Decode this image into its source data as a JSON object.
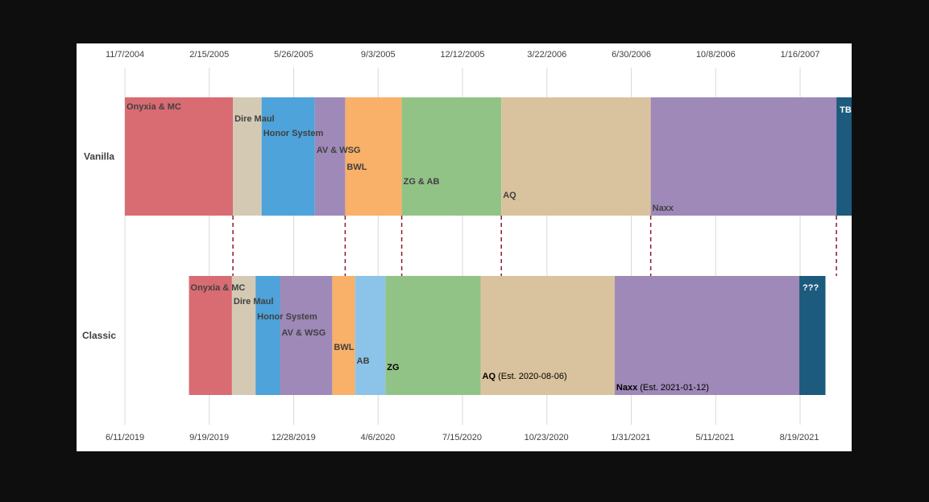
{
  "chart_data": {
    "type": "bar",
    "orientation": "horizontal-timeline",
    "top_axis": {
      "ticks": [
        "11/7/2004",
        "2/15/2005",
        "5/26/2005",
        "9/3/2005",
        "12/12/2005",
        "3/22/2006",
        "6/30/2006",
        "10/8/2006",
        "1/16/2007"
      ],
      "range": [
        "11/7/2004",
        "2/26/2007"
      ]
    },
    "bottom_axis": {
      "ticks": [
        "6/11/2019",
        "9/19/2019",
        "12/28/2019",
        "4/6/2020",
        "7/15/2020",
        "10/23/2020",
        "1/31/2021",
        "5/11/2021",
        "8/19/2021"
      ],
      "range": [
        "6/11/2019",
        "9/30/2021"
      ]
    },
    "rows": [
      {
        "name": "Vanilla",
        "axis": "top",
        "segments": [
          {
            "label": "Onyxia & MC",
            "start": "11/7/2004",
            "end": "3/15/2005",
            "color": "#D96B73"
          },
          {
            "label": "Dire Maul",
            "start": "3/15/2005",
            "end": "4/18/2005",
            "color": "#D4CAB4"
          },
          {
            "label": "Honor System",
            "start": "4/18/2005",
            "end": "6/20/2005",
            "color": "#4DA3DA"
          },
          {
            "label": "AV & WSG",
            "start": "6/20/2005",
            "end": "7/26/2005",
            "color": "#9E89B8"
          },
          {
            "label": "BWL",
            "start": "7/26/2005",
            "end": "10/1/2005",
            "color": "#F9B068"
          },
          {
            "label": "ZG & AB",
            "start": "10/1/2005",
            "end": "1/27/2006",
            "color": "#92C386"
          },
          {
            "label": "AQ",
            "start": "1/27/2006",
            "end": "7/23/2006",
            "color": "#D9C29E"
          },
          {
            "label": "Naxx",
            "start": "7/23/2006",
            "end": "2/28/2007",
            "color": "#9E89B8"
          },
          {
            "label": "TBC",
            "start": "2/28/2007",
            "end": "3/31/2007",
            "color": "#1C5A7E"
          }
        ]
      },
      {
        "name": "Classic",
        "axis": "bottom",
        "segments": [
          {
            "label": "Onyxia & MC",
            "note": "",
            "start": "8/26/2019",
            "end": "10/16/2019",
            "color": "#D96B73"
          },
          {
            "label": "Dire Maul",
            "note": "",
            "start": "10/16/2019",
            "end": "11/13/2019",
            "color": "#D4CAB4"
          },
          {
            "label": "Honor System",
            "note": "",
            "start": "11/13/2019",
            "end": "12/12/2019",
            "color": "#4DA3DA"
          },
          {
            "label": "AV & WSG",
            "note": "",
            "start": "12/12/2019",
            "end": "2/12/2020",
            "color": "#9E89B8"
          },
          {
            "label": "BWL",
            "note": "",
            "start": "2/12/2020",
            "end": "3/10/2020",
            "color": "#F9B068"
          },
          {
            "label": "AB",
            "note": "",
            "start": "3/10/2020",
            "end": "4/15/2020",
            "color": "#8BC4E8"
          },
          {
            "label": "ZG",
            "note": "",
            "start": "4/15/2020",
            "end": "8/6/2020",
            "color": "#92C386"
          },
          {
            "label": "AQ",
            "note": " (Est. 2020-08-06)",
            "start": "8/6/2020",
            "end": "1/12/2021",
            "color": "#D9C29E"
          },
          {
            "label": "Naxx",
            "note": " (Est. 2021-01-12)",
            "start": "1/12/2021",
            "end": "8/19/2021",
            "color": "#9E89B8"
          },
          {
            "label": "???",
            "note": "",
            "start": "8/19/2021",
            "end": "9/19/2021",
            "color": "#1C5A7E"
          }
        ]
      }
    ],
    "connectors": [
      "BWL start",
      "ZG start",
      "AQ start",
      "Naxx start",
      "end of Naxx"
    ],
    "connector_color": "#8B1A2B",
    "grid": true
  }
}
